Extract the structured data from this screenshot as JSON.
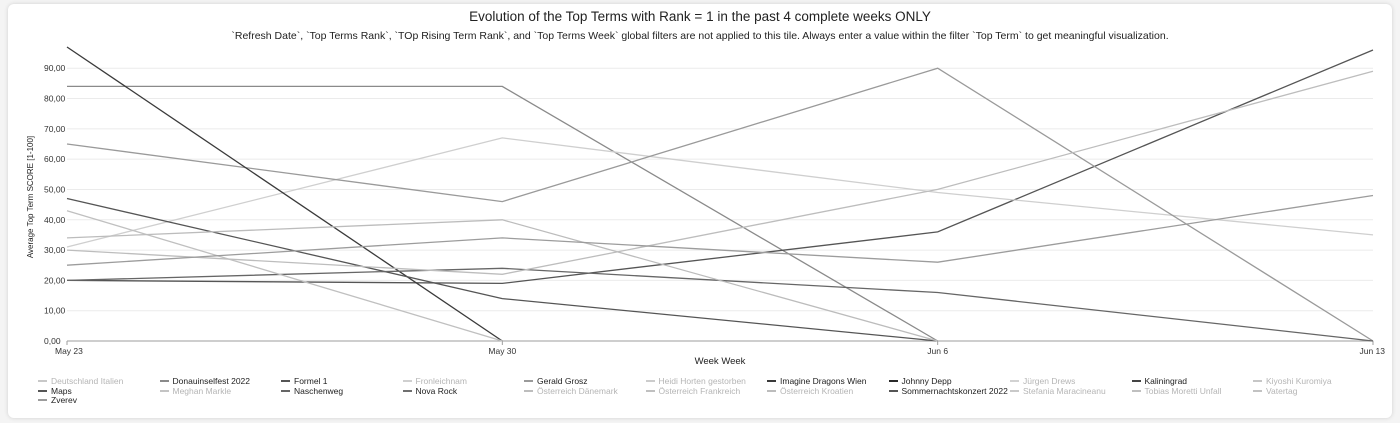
{
  "chart_data": {
    "type": "line",
    "title": "Evolution of the Top Terms with Rank = 1 in the past 4 complete weeks ONLY",
    "subtitle": "`Refresh Date`, `Top Terms Rank`, `TOp Rising Term Rank`, and `Top Terms Week` global filters are not applied to this tile. Always enter a value within the filter `Top Term` to get meaningful visualization.",
    "xlabel": "Week Week",
    "ylabel": "Average Top Term SCORE [1-100]",
    "categories": [
      "May 23",
      "May 30",
      "Jun 6",
      "Jun 13"
    ],
    "ylim": [
      0,
      96
    ],
    "yticks": [
      0,
      10,
      20,
      30,
      40,
      50,
      60,
      70,
      80,
      90
    ],
    "ytick_labels": [
      "0,00",
      "10,00",
      "20,00",
      "30,00",
      "40,00",
      "50,00",
      "60,00",
      "70,00",
      "80,00",
      "90,00"
    ],
    "grid": true,
    "legend_position": "bottom",
    "series": [
      {
        "name": "Deutschland Italien",
        "color": "#c8c8c8",
        "values": [
          null,
          null,
          null,
          null
        ]
      },
      {
        "name": "Donauinselfest 2022",
        "color": "#8a8a8a",
        "values": [
          84,
          84,
          0,
          null
        ]
      },
      {
        "name": "Formel 1",
        "color": "#555555",
        "values": [
          20,
          19,
          36,
          96
        ]
      },
      {
        "name": "Fronleichnam",
        "color": "#cfcfcf",
        "values": [
          31,
          67,
          49,
          35
        ]
      },
      {
        "name": "Gerald Grosz",
        "color": "#9a9a9a",
        "values": [
          65,
          46,
          90,
          0
        ]
      },
      {
        "name": "Heidi Horten gestorben",
        "color": "#cccccc",
        "values": [
          null,
          null,
          null,
          null
        ]
      },
      {
        "name": "Imagine Dragons Wien",
        "color": "#3a3a3a",
        "values": [
          97,
          0,
          null,
          null
        ]
      },
      {
        "name": "Johnny Depp",
        "color": "#2a2a2a",
        "values": [
          null,
          null,
          null,
          null
        ]
      },
      {
        "name": "Jürgen Drews",
        "color": "#d2d2d2",
        "values": [
          null,
          null,
          null,
          null
        ]
      },
      {
        "name": "Kaliningrad",
        "color": "#444444",
        "values": [
          null,
          null,
          null,
          null
        ]
      },
      {
        "name": "Kiyoshi Kuromiya",
        "color": "#c6c6c6",
        "values": [
          null,
          null,
          null,
          null
        ]
      },
      {
        "name": "Maps",
        "color": "#555555",
        "values": [
          47,
          14,
          0,
          null
        ]
      },
      {
        "name": "Meghan Markle",
        "color": "#c4c4c4",
        "values": [
          null,
          null,
          null,
          null
        ]
      },
      {
        "name": "Naschenweg",
        "color": "#666666",
        "values": [
          20,
          24,
          16,
          0
        ]
      },
      {
        "name": "Nova Rock",
        "color": "#6f6f6f",
        "values": [
          null,
          null,
          null,
          null
        ]
      },
      {
        "name": "Österreich Dänemark",
        "color": "#bdbdbd",
        "values": [
          30,
          22,
          50,
          89
        ]
      },
      {
        "name": "Österreich Frankreich",
        "color": "#c0c0c0",
        "values": [
          43,
          0,
          null,
          null
        ]
      },
      {
        "name": "Österreich Kroatien",
        "color": "#bcbcbc",
        "values": [
          34,
          40,
          0,
          null
        ]
      },
      {
        "name": "Sommernachtskonzert 2022",
        "color": "#555555",
        "values": [
          null,
          null,
          null,
          null
        ]
      },
      {
        "name": "Stefania Maracineanu",
        "color": "#c9c9c9",
        "values": [
          null,
          null,
          null,
          null
        ]
      },
      {
        "name": "Tobias Moretti Unfall",
        "color": "#bfbfbf",
        "values": [
          null,
          null,
          null,
          null
        ]
      },
      {
        "name": "Vatertag",
        "color": "#c2c2c2",
        "values": [
          null,
          null,
          null,
          null
        ]
      },
      {
        "name": "Zverev",
        "color": "#9c9c9c",
        "values": [
          25,
          34,
          26,
          48
        ]
      }
    ]
  }
}
